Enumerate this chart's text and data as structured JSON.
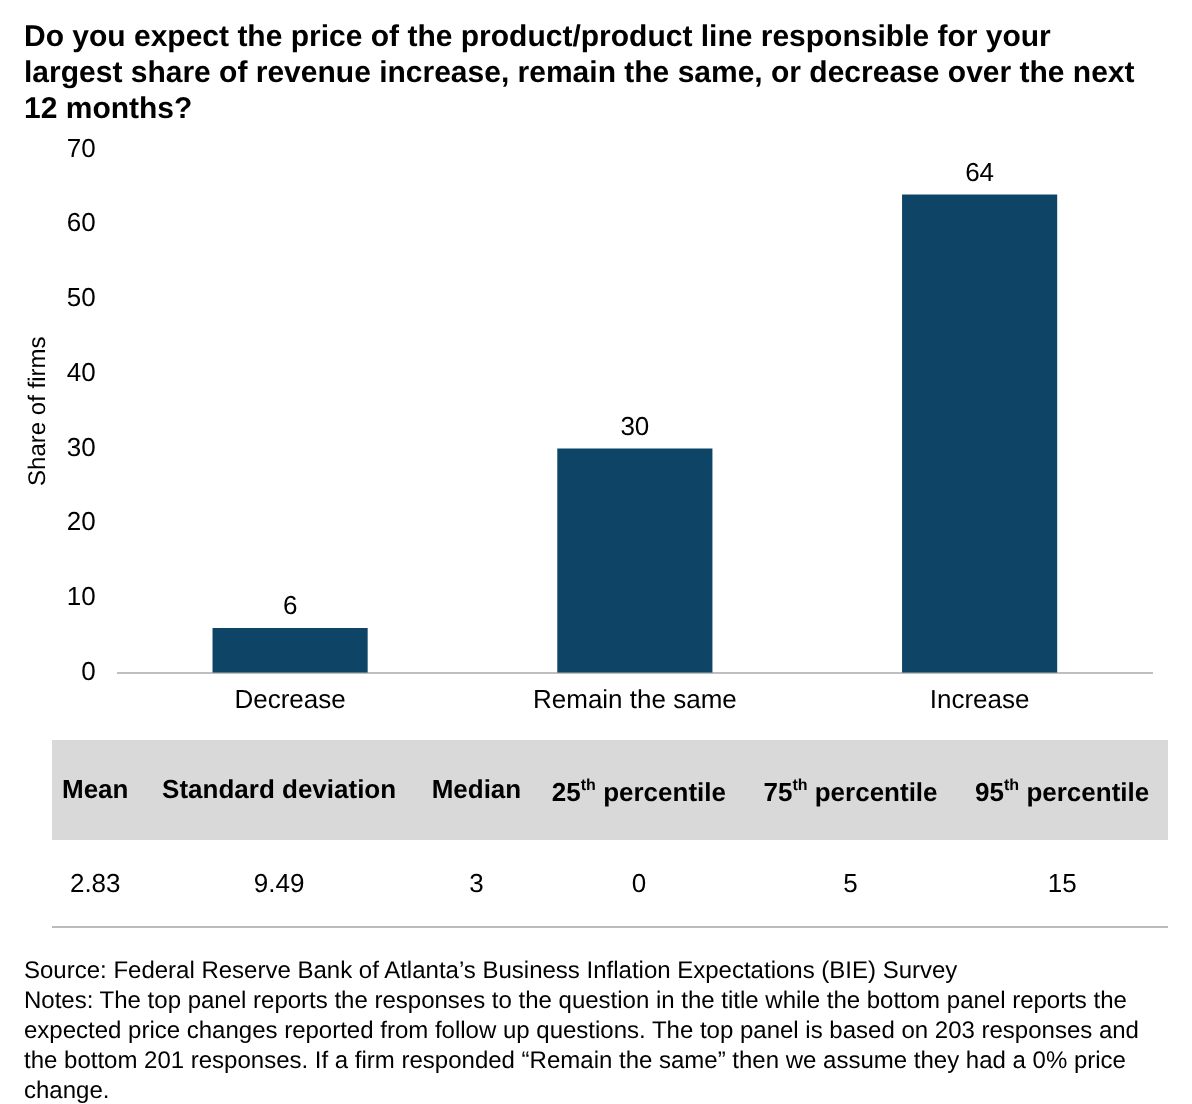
{
  "chart_data": [
    {
      "type": "bar",
      "title": "Do you expect the price of the product/product line responsible for your largest share of revenue increase, remain the same, or decrease over the next 12 months?",
      "ylabel": "Share of firms",
      "categories": [
        "Decrease",
        "Remain the same",
        "Increase"
      ],
      "values": [
        6,
        30,
        64
      ],
      "color": "#0e4566",
      "ylim": [
        0,
        70
      ],
      "yticks": [
        0,
        10,
        20,
        30,
        40,
        50,
        60,
        70
      ],
      "grid": false,
      "data_labels": true,
      "annotations": [
        "Source: Federal Reserve Bank of Atlanta’s Business Inflation Expectations (BIE) Survey",
        "Notes: The top panel reports the responses to the question in the title while the bottom panel reports the expected price changes reported from follow up questions. The top panel is based on 203 responses and the bottom 201 responses. If a firm responded “Remain the same” then we assume they had a 0% price change."
      ]
    },
    {
      "type": "other",
      "categories": [
        "Mean",
        "Standard deviation",
        "Median",
        "25$^{th}$ percentile",
        "75$^{th}$ percentile",
        "95$^{th}$ percentile"
      ],
      "values": [
        2.83,
        9.49,
        3,
        0,
        5,
        15
      ],
      "data_labels": true
    }
  ]
}
